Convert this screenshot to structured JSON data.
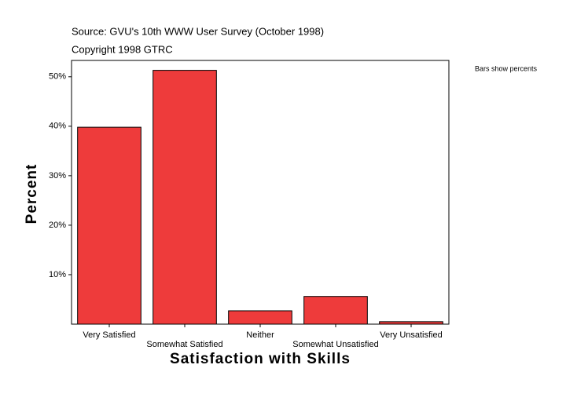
{
  "chart_data": {
    "type": "bar",
    "title": "Source: GVU's 10th WWW User Survey (October 1998)",
    "subtitle": "Copyright 1998 GTRC",
    "annotation": "Bars show percents",
    "x_label": "Satisfaction with Skills",
    "y_label": "Percent",
    "categories": [
      "Very Satisfied",
      "Somewhat Satisfied",
      "Neither",
      "Somewhat Unsatisfied",
      "Very Unsatisfied"
    ],
    "values": [
      39.8,
      51.3,
      2.7,
      5.6,
      0.5
    ],
    "color": "#ee3b3b",
    "ylim": [
      0,
      53.3
    ],
    "yticks": [
      {
        "value": 10,
        "label": "10%"
      },
      {
        "value": 20,
        "label": "20%"
      },
      {
        "value": 30,
        "label": "30%"
      },
      {
        "value": 40,
        "label": "40%"
      },
      {
        "value": 50,
        "label": "50%"
      }
    ]
  }
}
